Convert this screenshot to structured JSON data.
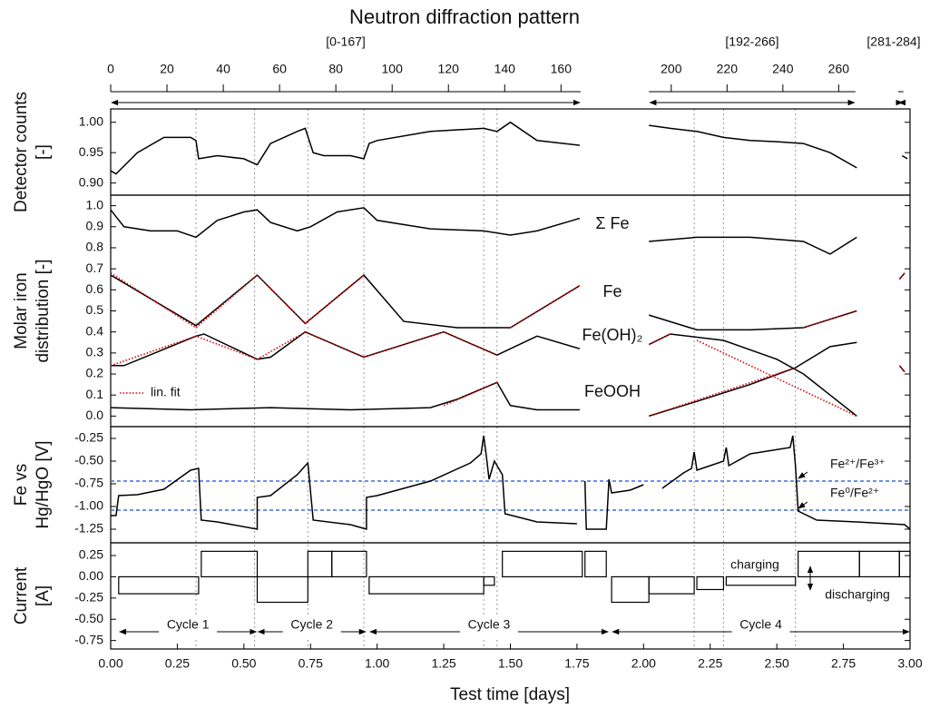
{
  "chart_data": [
    {
      "type": "line",
      "title": "Neutron diffraction pattern",
      "top_axis": [
        {
          "label": "[0-167]",
          "range": [
            0,
            167
          ],
          "days": [
            0,
            1.764
          ],
          "ticks": [
            0,
            20,
            40,
            60,
            80,
            100,
            120,
            140,
            160
          ]
        },
        {
          "label": "[192-266]",
          "range": [
            192,
            266
          ],
          "days": [
            2.02,
            2.795
          ],
          "ticks": [
            200,
            220,
            240,
            260
          ]
        },
        {
          "label": "[281-284]",
          "range": [
            281,
            284
          ],
          "days": [
            2.955,
            2.975
          ],
          "ticks": []
        }
      ],
      "ylabel": [
        "Detector counts",
        "[-]"
      ],
      "xlim": [
        0,
        3
      ],
      "ylim": [
        0.88,
        1.022
      ],
      "yticks": [
        {
          "value": 0.9,
          "label": "0.90"
        },
        0.95,
        {
          "value": 1.0,
          "label": "1.00"
        }
      ],
      "series": [
        {
          "color": "#000000",
          "x": [
            0,
            0.02,
            0.1,
            0.2,
            0.3,
            0.32,
            0.33,
            0.4,
            0.5,
            0.55,
            0.6,
            0.7,
            0.73,
            0.76,
            0.8,
            0.9,
            0.95,
            0.97,
            1.0,
            1.2,
            1.4,
            1.45,
            1.5,
            1.6,
            1.76,
            null,
            2.02,
            2.1,
            2.2,
            2.3,
            2.4,
            2.5,
            2.6,
            2.7,
            2.8,
            null,
            2.97,
            2.99
          ],
          "values": [
            0.92,
            0.915,
            0.95,
            0.975,
            0.975,
            0.97,
            0.94,
            0.945,
            0.94,
            0.93,
            0.965,
            0.985,
            0.99,
            0.95,
            0.945,
            0.945,
            0.94,
            0.965,
            0.97,
            0.985,
            0.99,
            0.985,
            1.0,
            0.97,
            0.962,
            null,
            0.995,
            0.99,
            0.985,
            0.975,
            0.97,
            0.968,
            0.965,
            0.95,
            0.925,
            null,
            0.945,
            0.94
          ]
        }
      ]
    },
    {
      "type": "line",
      "ylabel": [
        "Molar iron",
        "distribution [-]"
      ],
      "xlim": [
        0,
        3
      ],
      "ylim": [
        -0.05,
        1.05
      ],
      "yticks": [
        {
          "value": 0,
          "label": "0.0"
        },
        0.1,
        0.2,
        0.3,
        0.4,
        0.5,
        0.6,
        0.7,
        0.8,
        0.9,
        {
          "value": 1,
          "label": "1.0"
        }
      ],
      "legend": "lower left",
      "series": [
        {
          "name": "Σ Fe",
          "color": "#000000",
          "x": [
            0,
            0.05,
            0.15,
            0.25,
            0.32,
            0.4,
            0.5,
            0.55,
            0.6,
            0.7,
            0.75,
            0.85,
            0.95,
            1.0,
            1.2,
            1.4,
            1.5,
            1.6,
            1.76,
            null,
            2.02,
            2.2,
            2.4,
            2.6,
            2.7,
            2.8
          ],
          "values": [
            0.98,
            0.9,
            0.88,
            0.88,
            0.85,
            0.93,
            0.97,
            0.98,
            0.92,
            0.88,
            0.9,
            0.97,
            0.99,
            0.93,
            0.89,
            0.88,
            0.86,
            0.88,
            0.94,
            null,
            0.83,
            0.85,
            0.85,
            0.83,
            0.77,
            0.85
          ]
        },
        {
          "name": "Fe",
          "color": "#000000",
          "x": [
            0,
            0.32,
            0.55,
            0.73,
            0.95,
            1.1,
            1.3,
            1.5,
            1.76,
            null,
            2.02,
            2.2,
            2.4,
            2.6,
            2.8,
            null,
            2.96,
            2.98
          ],
          "values": [
            0.67,
            0.43,
            0.67,
            0.44,
            0.67,
            0.45,
            0.42,
            0.42,
            0.62,
            null,
            0.48,
            0.41,
            0.41,
            0.42,
            0.5,
            null,
            0.65,
            0.68
          ]
        },
        {
          "name": "Fe(OH)₂",
          "color": "#000000",
          "x": [
            0,
            0.05,
            0.32,
            0.35,
            0.55,
            0.6,
            0.73,
            0.95,
            1.25,
            1.45,
            1.6,
            1.76,
            null,
            2.02,
            2.1,
            2.3,
            2.5,
            2.6,
            2.7,
            2.8,
            null,
            2.96,
            2.98
          ],
          "values": [
            0.24,
            0.24,
            0.38,
            0.39,
            0.27,
            0.28,
            0.4,
            0.28,
            0.4,
            0.29,
            0.38,
            0.32,
            null,
            0.34,
            0.39,
            0.36,
            0.27,
            0.2,
            0.1,
            0.0,
            null,
            0.24,
            0.21
          ]
        },
        {
          "name": "FeOOH",
          "color": "#000000",
          "x": [
            0,
            0.3,
            0.6,
            0.9,
            1.2,
            1.3,
            1.45,
            1.5,
            1.6,
            1.76,
            null,
            2.02,
            2.2,
            2.4,
            2.57,
            2.7,
            2.8
          ],
          "values": [
            0.04,
            0.03,
            0.04,
            0.03,
            0.04,
            0.08,
            0.16,
            0.05,
            0.03,
            0.03,
            null,
            0.0,
            0.07,
            0.15,
            0.23,
            0.33,
            0.35
          ]
        },
        {
          "name": "lin. fit",
          "color": "#e00000",
          "linestyle": "dotted",
          "x": [
            0,
            0.32,
            0.55,
            0.73,
            0.95,
            null,
            1.5,
            1.76,
            null,
            0,
            0.32,
            0.55,
            0.73,
            0.95,
            1.25,
            1.45,
            null,
            1.25,
            1.45,
            null,
            2.02,
            2.1,
            null,
            2.2,
            2.8,
            null,
            2.02,
            2.57,
            null,
            2.6,
            2.8,
            null,
            2.96,
            2.98,
            null,
            2.96,
            2.98
          ],
          "values": [
            0.68,
            0.42,
            0.67,
            0.44,
            0.67,
            null,
            0.42,
            0.62,
            null,
            0.24,
            0.38,
            0.27,
            0.4,
            0.28,
            0.4,
            0.29,
            null,
            0.05,
            0.16,
            null,
            0.34,
            0.39,
            null,
            0.36,
            0.0,
            null,
            0.0,
            0.23,
            null,
            0.42,
            0.5,
            null,
            0.65,
            0.68,
            null,
            0.24,
            0.21
          ]
        }
      ]
    },
    {
      "type": "line",
      "ylabel": [
        "Fe vs",
        "Hg/HgO [V]"
      ],
      "xlim": [
        0,
        3
      ],
      "ylim": [
        -1.4,
        -0.12
      ],
      "yticks": [
        -0.25,
        {
          "value": -0.5,
          "label": "-0.50"
        },
        -0.75,
        {
          "value": -1.0,
          "label": "-1.00"
        },
        -1.25
      ],
      "hlines": [
        {
          "value": -0.72,
          "label": "Fe²⁺/Fe³⁺",
          "color": "#3a6fe0"
        },
        {
          "value": -1.04,
          "label": "Fe⁰/Fe²⁺",
          "color": "#3a6fe0"
        }
      ],
      "series": [
        {
          "color": "#000000",
          "x": [
            0,
            0.02,
            0.03,
            0.1,
            0.2,
            0.3,
            0.33,
            0.34,
            0.4,
            0.55,
            0.55,
            0.6,
            0.7,
            0.74,
            0.76,
            0.9,
            0.96,
            0.96,
            1.0,
            1.2,
            1.35,
            1.39,
            1.4,
            1.41,
            1.42,
            1.44,
            1.47,
            1.48,
            1.6,
            1.75,
            null,
            1.78,
            1.785,
            1.8,
            1.86,
            1.87,
            1.88,
            1.95,
            2.0,
            null,
            2.07,
            2.15,
            2.18,
            2.19,
            2.2,
            2.3,
            2.31,
            2.32,
            2.4,
            2.55,
            2.56,
            2.57,
            2.58,
            2.65,
            2.8,
            2.98,
            3.0
          ],
          "values": [
            -1.1,
            -1.1,
            -0.88,
            -0.87,
            -0.81,
            -0.6,
            -0.58,
            -1.15,
            -1.17,
            -1.25,
            -0.9,
            -0.88,
            -0.65,
            -0.52,
            -1.15,
            -1.2,
            -1.25,
            -0.9,
            -0.88,
            -0.72,
            -0.52,
            -0.42,
            -0.22,
            -0.45,
            -0.7,
            -0.5,
            -0.65,
            -1.08,
            -1.17,
            -1.19,
            null,
            -0.72,
            -1.25,
            -1.25,
            -1.25,
            -0.7,
            -0.85,
            -0.82,
            -0.76,
            null,
            -0.8,
            -0.63,
            -0.58,
            -0.4,
            -0.6,
            -0.5,
            -0.35,
            -0.55,
            -0.42,
            -0.35,
            -0.22,
            -0.55,
            -1.05,
            -1.15,
            -1.17,
            -1.2,
            -1.25
          ]
        }
      ]
    },
    {
      "type": "step",
      "ylabel": [
        "Current",
        "[A]"
      ],
      "xlabel": "Test time [days]",
      "xlim": [
        0,
        3
      ],
      "ylim": [
        -0.85,
        0.4
      ],
      "xticks": [
        {
          "value": 0,
          "label": "0.00"
        },
        0.25,
        {
          "value": 0.5,
          "label": "0.50"
        },
        0.75,
        {
          "value": 1,
          "label": "1.00"
        },
        1.25,
        {
          "value": 1.5,
          "label": "1.50"
        },
        1.75,
        {
          "value": 2,
          "label": "2.00"
        },
        2.25,
        {
          "value": 2.5,
          "label": "2.50"
        },
        2.75,
        {
          "value": 3,
          "label": "3.00"
        }
      ],
      "yticks": [
        0.25,
        {
          "value": 0,
          "label": "0.00"
        },
        -0.25,
        {
          "value": -0.5,
          "label": "-0.50"
        },
        -0.75
      ],
      "reference_x": [
        0.32,
        0.54,
        0.74,
        0.95,
        1.4,
        1.45,
        2.19,
        2.3,
        2.57
      ],
      "x_start": [
        0.03,
        0.34,
        0.55,
        0.74,
        0.83,
        0.97,
        1.4,
        1.47,
        1.78,
        1.88,
        2.02,
        2.2,
        2.31,
        2.58,
        2.81,
        2.96
      ],
      "x_end": [
        0.33,
        0.55,
        0.74,
        0.83,
        0.96,
        1.4,
        1.44,
        1.77,
        1.86,
        2.02,
        2.19,
        2.3,
        2.57,
        2.81,
        2.96,
        3.0
      ],
      "values": [
        -0.2,
        0.3,
        -0.3,
        0.3,
        0.3,
        -0.2,
        -0.1,
        0.3,
        0.3,
        -0.3,
        -0.2,
        -0.15,
        -0.1,
        0.3,
        0.3,
        0.3
      ],
      "annotations": [
        "charging",
        "discharging"
      ],
      "cycles": [
        {
          "label": "Cycle 1",
          "range": [
            0.03,
            0.55
          ]
        },
        {
          "label": "Cycle 2",
          "range": [
            0.55,
            0.96
          ]
        },
        {
          "label": "Cycle 3",
          "range": [
            0.97,
            1.87
          ]
        },
        {
          "label": "Cycle 4",
          "range": [
            1.88,
            3.0
          ]
        }
      ]
    }
  ]
}
